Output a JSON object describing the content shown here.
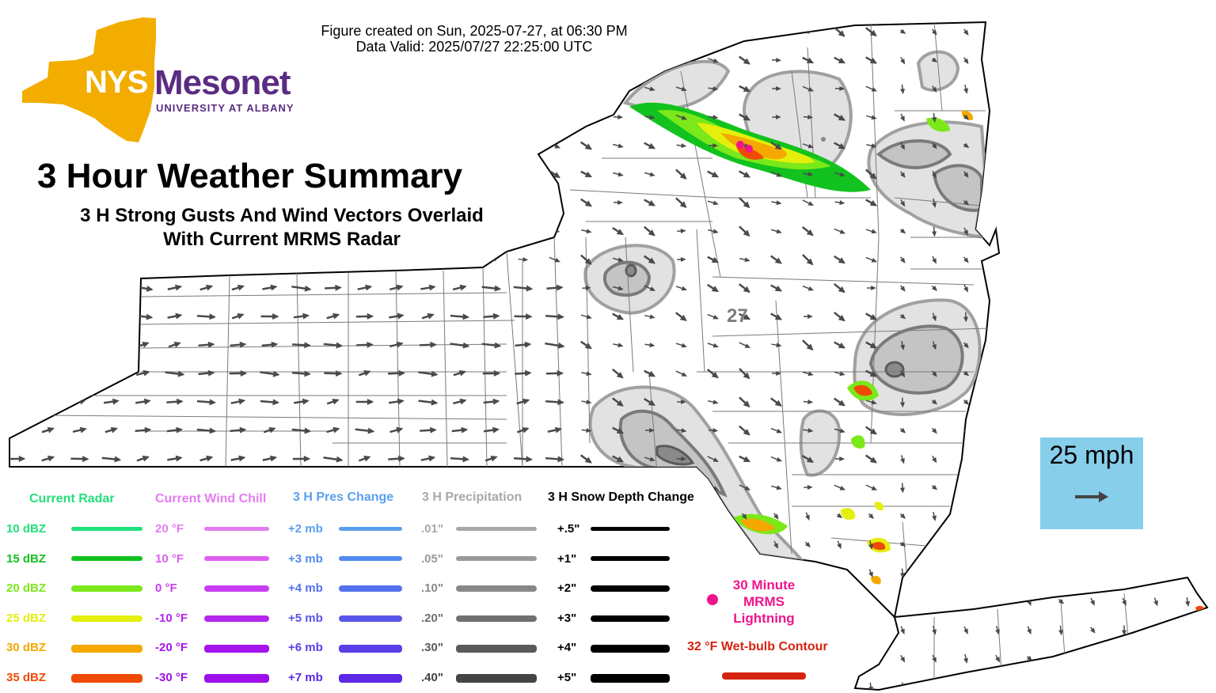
{
  "header": {
    "created_line": "Figure created on Sun, 2025-07-27, at 06:30 PM",
    "valid_line": "Data Valid: 2025/07/27 22:25:00 UTC"
  },
  "logo": {
    "word1": "NYS",
    "word2": "Mesonet",
    "tagline": "UNIVERSITY AT ALBANY",
    "state_color": "#f2ad00",
    "text_color": "#5b2c83"
  },
  "title": {
    "main": "3 Hour Weather Summary",
    "sub1": "3 H Strong Gusts And Wind Vectors Overlaid",
    "sub2": "With Current MRMS Radar"
  },
  "map": {
    "gust_label": "27",
    "wind_direction_deg": 135
  },
  "scale": {
    "label": "25 mph"
  },
  "legend": {
    "radar": {
      "title": "Current Radar",
      "title_color": "#22e07a",
      "items": [
        {
          "label": "10 dBZ",
          "color": "#22e07a"
        },
        {
          "label": "15 dBZ",
          "color": "#12c21e"
        },
        {
          "label": "20 dBZ",
          "color": "#7be81a"
        },
        {
          "label": "25 dBZ",
          "color": "#e4ef0c"
        },
        {
          "label": "30 dBZ",
          "color": "#f5a800"
        },
        {
          "label": "35 dBZ",
          "color": "#f04a06"
        }
      ]
    },
    "windchill": {
      "title": "Current Wind Chill",
      "title_color": "#e37cf0",
      "items": [
        {
          "label": "20 °F",
          "color": "#e37cf0"
        },
        {
          "label": "10 °F",
          "color": "#de5ff0"
        },
        {
          "label": "0 °F",
          "color": "#c93ef0"
        },
        {
          "label": "-10 °F",
          "color": "#b426ee"
        },
        {
          "label": "-20 °F",
          "color": "#a514ec"
        },
        {
          "label": "-30 °F",
          "color": "#9d10ea"
        }
      ]
    },
    "pressure": {
      "title": "3 H Pres Change",
      "title_color": "#5aa0f0",
      "items": [
        {
          "label": "+2 mb",
          "color": "#5aa0f0"
        },
        {
          "label": "+3 mb",
          "color": "#5289f0"
        },
        {
          "label": "+4 mb",
          "color": "#5470ee"
        },
        {
          "label": "+5 mb",
          "color": "#5a55ea"
        },
        {
          "label": "+6 mb",
          "color": "#5a3ee8"
        },
        {
          "label": "+7 mb",
          "color": "#5c28e6"
        }
      ]
    },
    "precip": {
      "title": "3 H Precipitation",
      "title_color": "#a8a8a8",
      "items": [
        {
          "label": ".01\"",
          "color": "#a8a8a8"
        },
        {
          "label": ".05\"",
          "color": "#999999"
        },
        {
          "label": ".10\"",
          "color": "#888888"
        },
        {
          "label": ".20\"",
          "color": "#707070"
        },
        {
          "label": ".30\"",
          "color": "#5a5a5a"
        },
        {
          "label": ".40\"",
          "color": "#444444"
        }
      ]
    },
    "snow": {
      "title": "3 H Snow Depth Change",
      "title_color": "#000000",
      "items": [
        {
          "label": "+.5\"",
          "color": "#000000"
        },
        {
          "label": "+1\"",
          "color": "#000000"
        },
        {
          "label": "+2\"",
          "color": "#000000"
        },
        {
          "label": "+3\"",
          "color": "#000000"
        },
        {
          "label": "+4\"",
          "color": "#000000"
        },
        {
          "label": "+5\"",
          "color": "#000000"
        }
      ]
    },
    "lightning": {
      "line1": "30 Minute",
      "line2": "MRMS",
      "line3": "Lightning",
      "color": "#f0148c"
    },
    "wetbulb": {
      "label": "32 °F Wet-bulb Contour",
      "color": "#d6230f"
    }
  }
}
